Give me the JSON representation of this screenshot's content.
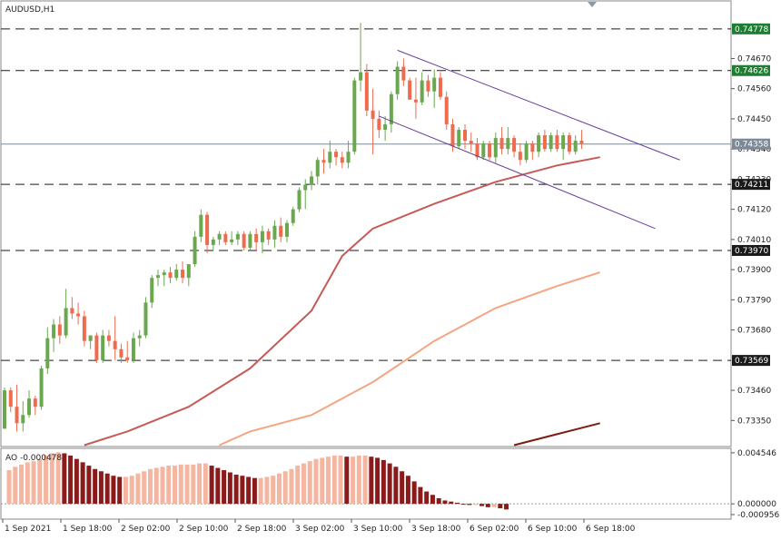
{
  "chart_data": [
    {
      "type": "candlestick",
      "title": "AUDUSD,H1",
      "ylim": [
        0.73255,
        0.7488
      ],
      "grid": false,
      "price_axis_ticks": [
        "0.74670",
        "0.74560",
        "0.74450",
        "0.74340",
        "0.74230",
        "0.74120",
        "0.74010",
        "0.73900",
        "0.73790",
        "0.73680",
        "0.73460",
        "0.73350"
      ],
      "horizontal_levels": [
        {
          "label": "0.74778",
          "value": 0.74778,
          "color": "#1e7d32",
          "style": "dashed"
        },
        {
          "label": "0.74626",
          "value": 0.74626,
          "color": "#1e7d32",
          "style": "dashed"
        },
        {
          "label": "0.74211",
          "value": 0.74211,
          "color": "#1a1a1a",
          "style": "dashed"
        },
        {
          "label": "0.73970",
          "value": 0.7397,
          "color": "#1a1a1a",
          "style": "dashed"
        },
        {
          "label": "0.73569",
          "value": 0.73569,
          "color": "#1a1a1a",
          "style": "dashed"
        }
      ],
      "current_price": {
        "label": "0.74358",
        "value": 0.74358,
        "color": "#7d8a96"
      },
      "time_axis_labels": [
        "1 Sep 2021",
        "1 Sep 18:00",
        "2 Sep 02:00",
        "2 Sep 10:00",
        "2 Sep 18:00",
        "3 Sep 02:00",
        "3 Sep 10:00",
        "3 Sep 18:00",
        "6 Sep 02:00",
        "6 Sep 10:00",
        "6 Sep 18:00"
      ],
      "colors": {
        "bull": "#6aa84f",
        "bear": "#ee6b4d"
      },
      "candles": [
        {
          "o": 0.7332,
          "h": 0.7347,
          "l": 0.7332,
          "c": 0.7346
        },
        {
          "o": 0.7346,
          "h": 0.7347,
          "l": 0.7338,
          "c": 0.734
        },
        {
          "o": 0.734,
          "h": 0.7348,
          "l": 0.7331,
          "c": 0.7334
        },
        {
          "o": 0.7334,
          "h": 0.7342,
          "l": 0.7331,
          "c": 0.7337
        },
        {
          "o": 0.7337,
          "h": 0.7346,
          "l": 0.7336,
          "c": 0.7343
        },
        {
          "o": 0.7343,
          "h": 0.7344,
          "l": 0.7337,
          "c": 0.734
        },
        {
          "o": 0.734,
          "h": 0.7355,
          "l": 0.7339,
          "c": 0.7354
        },
        {
          "o": 0.7354,
          "h": 0.7369,
          "l": 0.7352,
          "c": 0.7365
        },
        {
          "o": 0.7365,
          "h": 0.7372,
          "l": 0.736,
          "c": 0.737
        },
        {
          "o": 0.737,
          "h": 0.7373,
          "l": 0.7363,
          "c": 0.7366
        },
        {
          "o": 0.7366,
          "h": 0.7383,
          "l": 0.7365,
          "c": 0.7376
        },
        {
          "o": 0.7376,
          "h": 0.738,
          "l": 0.7372,
          "c": 0.7374
        },
        {
          "o": 0.7374,
          "h": 0.7378,
          "l": 0.737,
          "c": 0.7373
        },
        {
          "o": 0.7373,
          "h": 0.7375,
          "l": 0.7362,
          "c": 0.7364
        },
        {
          "o": 0.7364,
          "h": 0.7366,
          "l": 0.7361,
          "c": 0.7366
        },
        {
          "o": 0.7366,
          "h": 0.7367,
          "l": 0.7356,
          "c": 0.7357
        },
        {
          "o": 0.7357,
          "h": 0.7368,
          "l": 0.7356,
          "c": 0.7366
        },
        {
          "o": 0.7366,
          "h": 0.7368,
          "l": 0.7362,
          "c": 0.7364
        },
        {
          "o": 0.7364,
          "h": 0.7373,
          "l": 0.7357,
          "c": 0.7361
        },
        {
          "o": 0.7361,
          "h": 0.7363,
          "l": 0.7356,
          "c": 0.7358
        },
        {
          "o": 0.7358,
          "h": 0.7364,
          "l": 0.7356,
          "c": 0.7357
        },
        {
          "o": 0.7357,
          "h": 0.7367,
          "l": 0.7356,
          "c": 0.7365
        },
        {
          "o": 0.7365,
          "h": 0.7368,
          "l": 0.7362,
          "c": 0.7366
        },
        {
          "o": 0.7366,
          "h": 0.738,
          "l": 0.7365,
          "c": 0.7378
        },
        {
          "o": 0.7378,
          "h": 0.7388,
          "l": 0.7376,
          "c": 0.7387
        },
        {
          "o": 0.7387,
          "h": 0.739,
          "l": 0.7384,
          "c": 0.7388
        },
        {
          "o": 0.7388,
          "h": 0.739,
          "l": 0.7384,
          "c": 0.7389
        },
        {
          "o": 0.7389,
          "h": 0.7391,
          "l": 0.7385,
          "c": 0.7387
        },
        {
          "o": 0.7387,
          "h": 0.7392,
          "l": 0.7386,
          "c": 0.739
        },
        {
          "o": 0.739,
          "h": 0.7393,
          "l": 0.7385,
          "c": 0.7387
        },
        {
          "o": 0.7387,
          "h": 0.7392,
          "l": 0.7384,
          "c": 0.7392
        },
        {
          "o": 0.7392,
          "h": 0.7404,
          "l": 0.7391,
          "c": 0.7402
        },
        {
          "o": 0.7402,
          "h": 0.7412,
          "l": 0.74,
          "c": 0.741
        },
        {
          "o": 0.741,
          "h": 0.7411,
          "l": 0.7396,
          "c": 0.7399
        },
        {
          "o": 0.7399,
          "h": 0.7402,
          "l": 0.7397,
          "c": 0.7401
        },
        {
          "o": 0.7401,
          "h": 0.7404,
          "l": 0.7399,
          "c": 0.7403
        },
        {
          "o": 0.7403,
          "h": 0.7404,
          "l": 0.7399,
          "c": 0.74
        },
        {
          "o": 0.74,
          "h": 0.7404,
          "l": 0.7399,
          "c": 0.7401
        },
        {
          "o": 0.7401,
          "h": 0.7404,
          "l": 0.7399,
          "c": 0.7403
        },
        {
          "o": 0.7403,
          "h": 0.7404,
          "l": 0.7397,
          "c": 0.7398
        },
        {
          "o": 0.7398,
          "h": 0.7404,
          "l": 0.7397,
          "c": 0.7403
        },
        {
          "o": 0.7403,
          "h": 0.7405,
          "l": 0.7397,
          "c": 0.74
        },
        {
          "o": 0.74,
          "h": 0.7406,
          "l": 0.7396,
          "c": 0.7404
        },
        {
          "o": 0.7404,
          "h": 0.7405,
          "l": 0.7399,
          "c": 0.7401
        },
        {
          "o": 0.7401,
          "h": 0.7408,
          "l": 0.7398,
          "c": 0.7406
        },
        {
          "o": 0.7406,
          "h": 0.7409,
          "l": 0.74,
          "c": 0.7402
        },
        {
          "o": 0.7402,
          "h": 0.7408,
          "l": 0.74,
          "c": 0.7407
        },
        {
          "o": 0.7407,
          "h": 0.7413,
          "l": 0.7406,
          "c": 0.7412
        },
        {
          "o": 0.7412,
          "h": 0.742,
          "l": 0.7411,
          "c": 0.7419
        },
        {
          "o": 0.7419,
          "h": 0.7423,
          "l": 0.7412,
          "c": 0.7421
        },
        {
          "o": 0.7421,
          "h": 0.7426,
          "l": 0.7419,
          "c": 0.7424
        },
        {
          "o": 0.7424,
          "h": 0.7431,
          "l": 0.7421,
          "c": 0.743
        },
        {
          "o": 0.743,
          "h": 0.7434,
          "l": 0.7425,
          "c": 0.7429
        },
        {
          "o": 0.7429,
          "h": 0.7437,
          "l": 0.7427,
          "c": 0.7433
        },
        {
          "o": 0.7433,
          "h": 0.7434,
          "l": 0.7428,
          "c": 0.7431
        },
        {
          "o": 0.7431,
          "h": 0.7433,
          "l": 0.7427,
          "c": 0.7429
        },
        {
          "o": 0.7429,
          "h": 0.7437,
          "l": 0.7427,
          "c": 0.7433
        },
        {
          "o": 0.7433,
          "h": 0.746,
          "l": 0.7432,
          "c": 0.7459
        },
        {
          "o": 0.7459,
          "h": 0.748,
          "l": 0.7455,
          "c": 0.7462
        },
        {
          "o": 0.7462,
          "h": 0.7465,
          "l": 0.7446,
          "c": 0.7448
        },
        {
          "o": 0.7448,
          "h": 0.7456,
          "l": 0.7432,
          "c": 0.7445
        },
        {
          "o": 0.7445,
          "h": 0.7448,
          "l": 0.7438,
          "c": 0.7441
        },
        {
          "o": 0.7441,
          "h": 0.7446,
          "l": 0.7437,
          "c": 0.7443
        },
        {
          "o": 0.7443,
          "h": 0.7455,
          "l": 0.744,
          "c": 0.7454
        },
        {
          "o": 0.7454,
          "h": 0.7466,
          "l": 0.7452,
          "c": 0.7464
        },
        {
          "o": 0.7464,
          "h": 0.7467,
          "l": 0.7457,
          "c": 0.7459
        },
        {
          "o": 0.7459,
          "h": 0.746,
          "l": 0.7452,
          "c": 0.7452
        },
        {
          "o": 0.7452,
          "h": 0.746,
          "l": 0.7445,
          "c": 0.7451
        },
        {
          "o": 0.7451,
          "h": 0.7462,
          "l": 0.745,
          "c": 0.7459
        },
        {
          "o": 0.7459,
          "h": 0.7461,
          "l": 0.7453,
          "c": 0.7455
        },
        {
          "o": 0.7455,
          "h": 0.7463,
          "l": 0.7449,
          "c": 0.746
        },
        {
          "o": 0.746,
          "h": 0.7462,
          "l": 0.7452,
          "c": 0.7453
        },
        {
          "o": 0.7453,
          "h": 0.7455,
          "l": 0.7441,
          "c": 0.7443
        },
        {
          "o": 0.7443,
          "h": 0.7445,
          "l": 0.7433,
          "c": 0.7435
        },
        {
          "o": 0.7435,
          "h": 0.7442,
          "l": 0.7434,
          "c": 0.7441
        },
        {
          "o": 0.7441,
          "h": 0.7443,
          "l": 0.7434,
          "c": 0.7437
        },
        {
          "o": 0.7437,
          "h": 0.744,
          "l": 0.7433,
          "c": 0.7436
        },
        {
          "o": 0.7436,
          "h": 0.7438,
          "l": 0.743,
          "c": 0.7431
        },
        {
          "o": 0.7431,
          "h": 0.7437,
          "l": 0.743,
          "c": 0.7436
        },
        {
          "o": 0.7436,
          "h": 0.7437,
          "l": 0.743,
          "c": 0.7431
        },
        {
          "o": 0.7431,
          "h": 0.744,
          "l": 0.7429,
          "c": 0.7438
        },
        {
          "o": 0.7438,
          "h": 0.7442,
          "l": 0.7432,
          "c": 0.7434
        },
        {
          "o": 0.7434,
          "h": 0.7442,
          "l": 0.7432,
          "c": 0.7438
        },
        {
          "o": 0.7438,
          "h": 0.7439,
          "l": 0.7431,
          "c": 0.7433
        },
        {
          "o": 0.7433,
          "h": 0.7436,
          "l": 0.7428,
          "c": 0.743
        },
        {
          "o": 0.743,
          "h": 0.7437,
          "l": 0.7429,
          "c": 0.7436
        },
        {
          "o": 0.7436,
          "h": 0.7437,
          "l": 0.743,
          "c": 0.7433
        },
        {
          "o": 0.7433,
          "h": 0.744,
          "l": 0.7431,
          "c": 0.7439
        },
        {
          "o": 0.7439,
          "h": 0.7441,
          "l": 0.7433,
          "c": 0.7434
        },
        {
          "o": 0.7434,
          "h": 0.744,
          "l": 0.7433,
          "c": 0.7439
        },
        {
          "o": 0.7439,
          "h": 0.7441,
          "l": 0.7433,
          "c": 0.7434
        },
        {
          "o": 0.7434,
          "h": 0.744,
          "l": 0.743,
          "c": 0.7439
        },
        {
          "o": 0.7439,
          "h": 0.744,
          "l": 0.7432,
          "c": 0.7433
        },
        {
          "o": 0.7433,
          "h": 0.7439,
          "l": 0.7432,
          "c": 0.7437
        },
        {
          "o": 0.7437,
          "h": 0.7441,
          "l": 0.7434,
          "c": 0.7436
        }
      ],
      "moving_averages": [
        {
          "color": "#c55a57",
          "points": [
            [
              13,
              0.7326
            ],
            [
              20,
              0.7331
            ],
            [
              30,
              0.734
            ],
            [
              40,
              0.7354
            ],
            [
              50,
              0.7375
            ],
            [
              55,
              0.7395
            ],
            [
              60,
              0.7405
            ],
            [
              70,
              0.7414
            ],
            [
              80,
              0.7422
            ],
            [
              90,
              0.7428
            ],
            [
              97,
              0.7431
            ]
          ]
        },
        {
          "color": "#f4a582",
          "points": [
            [
              35,
              0.7326
            ],
            [
              40,
              0.7331
            ],
            [
              50,
              0.7337
            ],
            [
              60,
              0.7349
            ],
            [
              70,
              0.7364
            ],
            [
              80,
              0.7376
            ],
            [
              90,
              0.7384
            ],
            [
              97,
              0.7389
            ]
          ]
        },
        {
          "color": "#7b1c14",
          "points": [
            [
              83,
              0.7326
            ],
            [
              90,
              0.733
            ],
            [
              97,
              0.7334
            ]
          ]
        }
      ],
      "trend_lines": [
        {
          "color": "#6a3d9a",
          "from": [
            64,
            0.747
          ],
          "to": [
            110,
            0.743
          ]
        },
        {
          "color": "#6a3d9a",
          "from": [
            61,
            0.7446
          ],
          "to": [
            106,
            0.7405
          ]
        }
      ]
    },
    {
      "type": "bar",
      "title": "AO -0.000478",
      "y_axis_ticks": [
        "0.004546",
        "0.000000",
        "-0.000956"
      ],
      "ylim": [
        -0.0012,
        0.0047
      ],
      "colors": {
        "rising": "#f4b6a0",
        "falling": "#8b1a1a"
      },
      "values": [
        0.003,
        0.0033,
        0.0035,
        0.0037,
        0.0038,
        0.004,
        0.0043,
        0.0045,
        0.0046,
        0.0045,
        0.0043,
        0.004,
        0.0037,
        0.0034,
        0.0031,
        0.0029,
        0.0027,
        0.0025,
        0.0024,
        0.0024,
        0.0025,
        0.0027,
        0.0029,
        0.0031,
        0.0032,
        0.0033,
        0.0034,
        0.0034,
        0.0035,
        0.0035,
        0.0035,
        0.0036,
        0.0036,
        0.0034,
        0.0032,
        0.003,
        0.0028,
        0.0026,
        0.0025,
        0.0024,
        0.0023,
        0.0023,
        0.0024,
        0.0025,
        0.0027,
        0.0029,
        0.0031,
        0.0034,
        0.0036,
        0.0038,
        0.004,
        0.0041,
        0.0042,
        0.0043,
        0.0043,
        0.0042,
        0.0042,
        0.0043,
        0.0043,
        0.0042,
        0.0041,
        0.0039,
        0.0036,
        0.0033,
        0.0029,
        0.0025,
        0.002,
        0.0015,
        0.0011,
        0.0008,
        0.0005,
        0.0003,
        0.0002,
        0.0001,
        0.0,
        -0.0001,
        -0.0001,
        -0.0002,
        -0.0003,
        -0.0003,
        -0.0004,
        -0.0005
      ]
    }
  ]
}
